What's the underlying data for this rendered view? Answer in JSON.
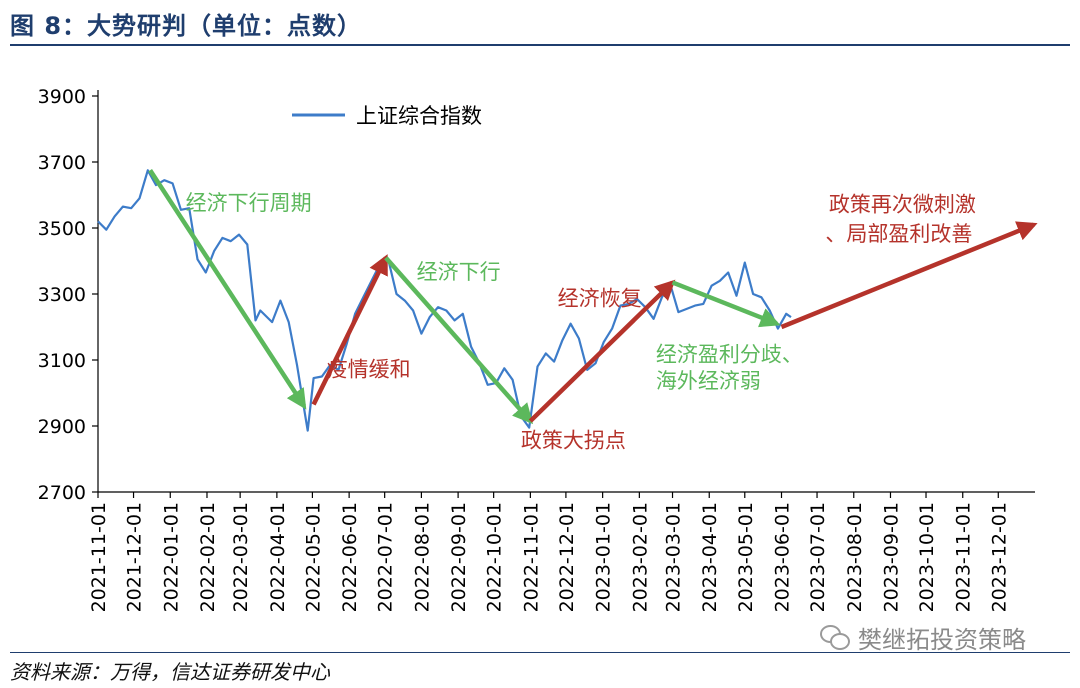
{
  "header": {
    "title": "图 8：大势研判（单位：点数）"
  },
  "footer": {
    "source": "资料来源：万得，信达证券研发中心",
    "watermark": "樊继拓投资策略"
  },
  "colors": {
    "line": "#3d7cc9",
    "green": "#5cb85c",
    "red": "#b5332b",
    "axis": "#000000",
    "title": "#1f3e6e"
  },
  "chart_data": {
    "type": "line",
    "ylim": [
      2700,
      3900
    ],
    "yticks": [
      2700,
      2900,
      3100,
      3300,
      3500,
      3700,
      3900
    ],
    "xticks": [
      "2021-11-01",
      "2021-12-01",
      "2022-01-01",
      "2022-02-01",
      "2022-03-01",
      "2022-04-01",
      "2022-05-01",
      "2022-06-01",
      "2022-07-01",
      "2022-08-01",
      "2022-09-01",
      "2022-10-01",
      "2022-11-01",
      "2022-12-01",
      "2023-01-01",
      "2023-02-01",
      "2023-03-01",
      "2023-04-01",
      "2023-05-01",
      "2023-06-01",
      "2023-07-01",
      "2023-08-01",
      "2023-09-01",
      "2023-10-01",
      "2023-11-01",
      "2023-12-01"
    ],
    "series": [
      {
        "name": "上证综合指数",
        "points": [
          [
            "2021-11-01",
            3520
          ],
          [
            "2021-11-08",
            3495
          ],
          [
            "2021-11-15",
            3535
          ],
          [
            "2021-11-22",
            3565
          ],
          [
            "2021-11-29",
            3560
          ],
          [
            "2021-12-06",
            3590
          ],
          [
            "2021-12-13",
            3675
          ],
          [
            "2021-12-20",
            3630
          ],
          [
            "2021-12-27",
            3645
          ],
          [
            "2022-01-03",
            3635
          ],
          [
            "2022-01-10",
            3555
          ],
          [
            "2022-01-17",
            3560
          ],
          [
            "2022-01-24",
            3405
          ],
          [
            "2022-01-31",
            3365
          ],
          [
            "2022-02-07",
            3430
          ],
          [
            "2022-02-14",
            3470
          ],
          [
            "2022-02-21",
            3460
          ],
          [
            "2022-02-28",
            3480
          ],
          [
            "2022-03-07",
            3450
          ],
          [
            "2022-03-14",
            3220
          ],
          [
            "2022-03-18",
            3250
          ],
          [
            "2022-03-28",
            3215
          ],
          [
            "2022-04-04",
            3280
          ],
          [
            "2022-04-11",
            3215
          ],
          [
            "2022-04-18",
            3085
          ],
          [
            "2022-04-25",
            2930
          ],
          [
            "2022-04-27",
            2886
          ],
          [
            "2022-05-02",
            3045
          ],
          [
            "2022-05-09",
            3050
          ],
          [
            "2022-05-16",
            3085
          ],
          [
            "2022-05-23",
            3070
          ],
          [
            "2022-05-30",
            3150
          ],
          [
            "2022-06-06",
            3240
          ],
          [
            "2022-06-13",
            3290
          ],
          [
            "2022-06-20",
            3340
          ],
          [
            "2022-06-27",
            3390
          ],
          [
            "2022-07-04",
            3405
          ],
          [
            "2022-07-11",
            3300
          ],
          [
            "2022-07-18",
            3280
          ],
          [
            "2022-07-25",
            3250
          ],
          [
            "2022-08-01",
            3180
          ],
          [
            "2022-08-08",
            3230
          ],
          [
            "2022-08-15",
            3260
          ],
          [
            "2022-08-22",
            3250
          ],
          [
            "2022-08-29",
            3220
          ],
          [
            "2022-09-05",
            3240
          ],
          [
            "2022-09-12",
            3140
          ],
          [
            "2022-09-19",
            3090
          ],
          [
            "2022-09-26",
            3025
          ],
          [
            "2022-10-03",
            3030
          ],
          [
            "2022-10-10",
            3075
          ],
          [
            "2022-10-17",
            3040
          ],
          [
            "2022-10-24",
            2930
          ],
          [
            "2022-10-31",
            2895
          ],
          [
            "2022-11-07",
            3080
          ],
          [
            "2022-11-14",
            3120
          ],
          [
            "2022-11-21",
            3095
          ],
          [
            "2022-11-28",
            3160
          ],
          [
            "2022-12-05",
            3210
          ],
          [
            "2022-12-12",
            3165
          ],
          [
            "2022-12-19",
            3070
          ],
          [
            "2022-12-26",
            3090
          ],
          [
            "2023-01-02",
            3155
          ],
          [
            "2023-01-09",
            3195
          ],
          [
            "2023-01-16",
            3265
          ],
          [
            "2023-01-23",
            3270
          ],
          [
            "2023-01-30",
            3285
          ],
          [
            "2023-02-06",
            3260
          ],
          [
            "2023-02-13",
            3225
          ],
          [
            "2023-02-20",
            3290
          ],
          [
            "2023-02-27",
            3330
          ],
          [
            "2023-03-06",
            3245
          ],
          [
            "2023-03-13",
            3255
          ],
          [
            "2023-03-20",
            3265
          ],
          [
            "2023-03-27",
            3270
          ],
          [
            "2023-04-03",
            3325
          ],
          [
            "2023-04-10",
            3340
          ],
          [
            "2023-04-17",
            3365
          ],
          [
            "2023-04-24",
            3295
          ],
          [
            "2023-05-01",
            3395
          ],
          [
            "2023-05-08",
            3300
          ],
          [
            "2023-05-15",
            3290
          ],
          [
            "2023-05-22",
            3250
          ],
          [
            "2023-05-29",
            3195
          ],
          [
            "2023-06-05",
            3240
          ],
          [
            "2023-06-09",
            3230
          ]
        ]
      }
    ],
    "annotations": [
      {
        "text": "经济下行周期",
        "color": "green",
        "arrow": [
          [
            "2021-12-15",
            3675
          ],
          [
            "2022-04-24",
            2960
          ]
        ],
        "label_at": [
          "2022-01-14",
          3555
        ]
      },
      {
        "text": "疫情缓和",
        "color": "red",
        "arrow": [
          [
            "2022-05-02",
            2965
          ],
          [
            "2022-07-02",
            3410
          ]
        ],
        "label_at": [
          "2022-05-13",
          3050
        ]
      },
      {
        "text": "经济下行",
        "color": "green",
        "arrow": [
          [
            "2022-07-02",
            3410
          ],
          [
            "2022-11-01",
            2915
          ]
        ],
        "label_at": [
          "2022-07-28",
          3345
        ]
      },
      {
        "text": "经济恢复",
        "color": "red",
        "arrow": [
          [
            "2022-11-01",
            2915
          ],
          [
            "2023-03-01",
            3335
          ]
        ],
        "label_at": [
          "2022-11-24",
          3265
        ]
      },
      {
        "text": "经济盈利分歧、",
        "color": "green",
        "arrow": [
          [
            "2023-03-01",
            3335
          ],
          [
            "2023-05-28",
            3210
          ]
        ],
        "label_at": [
          "2023-02-15",
          3095
        ]
      },
      {
        "text": "海外经济弱",
        "color": "green",
        "label_at": [
          "2023-02-15",
          3015
        ]
      },
      {
        "text": "政策大拐点",
        "color": "red",
        "label_at": [
          "2022-10-24",
          2835
        ]
      },
      {
        "text": "政策再次微刺激",
        "color": "red",
        "arrow": [
          [
            "2023-06-01",
            3200
          ],
          [
            "2023-12-31",
            3510
          ]
        ],
        "label_at": [
          "2023-07-11",
          3550
        ]
      },
      {
        "text": "、局部盈利改善",
        "color": "red",
        "label_at": [
          "2023-07-08",
          3460
        ]
      }
    ]
  }
}
